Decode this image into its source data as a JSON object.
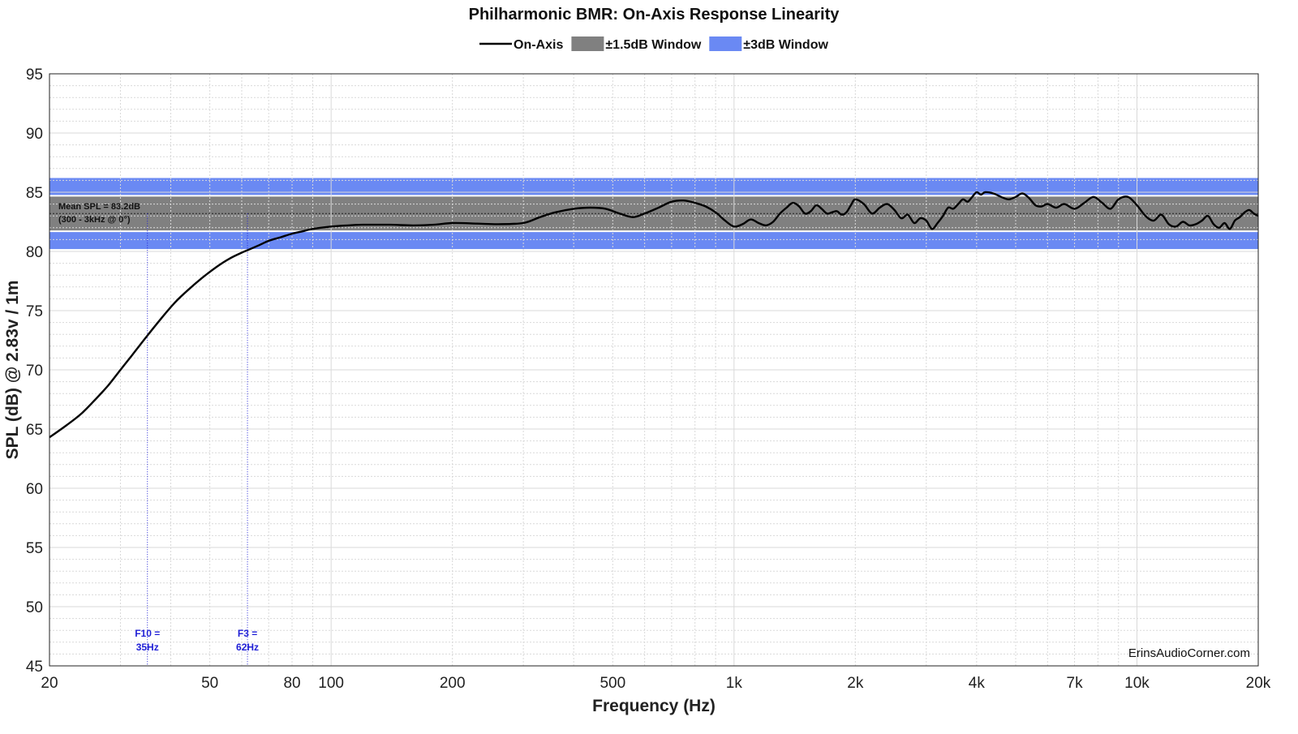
{
  "chart_data": {
    "type": "line",
    "title": "Philharmonic BMR: On-Axis Response Linearity",
    "xlabel": "Frequency (Hz)",
    "ylabel": "SPL (dB) @ 2.83v / 1m",
    "x_scale": "log",
    "xlim": [
      20,
      20000
    ],
    "ylim": [
      45,
      95
    ],
    "grid": true,
    "legend_position": "top-center",
    "x_ticks": [
      {
        "value": 20,
        "label": "20"
      },
      {
        "value": 50,
        "label": "50"
      },
      {
        "value": 80,
        "label": "80"
      },
      {
        "value": 100,
        "label": "100"
      },
      {
        "value": 200,
        "label": "200"
      },
      {
        "value": 500,
        "label": "500"
      },
      {
        "value": 1000,
        "label": "1k"
      },
      {
        "value": 2000,
        "label": "2k"
      },
      {
        "value": 4000,
        "label": "4k"
      },
      {
        "value": 7000,
        "label": "7k"
      },
      {
        "value": 10000,
        "label": "10k"
      },
      {
        "value": 20000,
        "label": "20k"
      }
    ],
    "y_ticks": [
      {
        "value": 45,
        "label": "45"
      },
      {
        "value": 50,
        "label": "50"
      },
      {
        "value": 55,
        "label": "55"
      },
      {
        "value": 60,
        "label": "60"
      },
      {
        "value": 65,
        "label": "65"
      },
      {
        "value": 70,
        "label": "70"
      },
      {
        "value": 75,
        "label": "75"
      },
      {
        "value": 80,
        "label": "80"
      },
      {
        "value": 85,
        "label": "85"
      },
      {
        "value": 90,
        "label": "90"
      },
      {
        "value": 95,
        "label": "95"
      }
    ],
    "legend": [
      {
        "label": "On-Axis",
        "kind": "line",
        "color": "#000000"
      },
      {
        "label": "±1.5dB Window",
        "kind": "band",
        "color": "#808080"
      },
      {
        "label": "±3dB Window",
        "kind": "band",
        "color": "#6a89f3"
      }
    ],
    "bands": [
      {
        "name": "±3dB Window",
        "low": 80.2,
        "high": 86.2,
        "color": "#6a89f3"
      },
      {
        "name": "±1.5dB Window",
        "low": 81.7,
        "high": 84.7,
        "color": "#808080"
      }
    ],
    "mean_line": {
      "value": 83.2
    },
    "annotations": {
      "mean_text_1": "Mean SPL = 83.2dB",
      "mean_text_2": "(300 - 3kHz @ 0°)",
      "f10_line1": "F10 =",
      "f10_line2": "35Hz",
      "f10_freq": 35,
      "f3_line1": "F3 =",
      "f3_line2": "62Hz",
      "f3_freq": 62,
      "watermark": "ErinsAudioCorner.com"
    },
    "colors": {
      "curve": "#000000",
      "marker": "#1f1fd6",
      "grid": "#d9d9d9"
    },
    "series": [
      {
        "name": "On-Axis",
        "x": [
          20,
          22,
          24,
          26,
          28,
          30,
          32,
          35,
          38,
          41,
          44,
          48,
          52,
          56,
          60,
          62,
          66,
          70,
          75,
          80,
          85,
          90,
          100,
          110,
          120,
          140,
          160,
          180,
          200,
          230,
          260,
          300,
          330,
          360,
          400,
          440,
          480,
          520,
          560,
          600,
          650,
          700,
          750,
          800,
          850,
          900,
          950,
          1000,
          1050,
          1100,
          1150,
          1200,
          1250,
          1300,
          1350,
          1400,
          1450,
          1500,
          1550,
          1600,
          1650,
          1700,
          1750,
          1800,
          1850,
          1900,
          1950,
          2000,
          2100,
          2200,
          2300,
          2400,
          2500,
          2600,
          2700,
          2800,
          2900,
          3000,
          3100,
          3200,
          3300,
          3400,
          3500,
          3600,
          3700,
          3800,
          3900,
          4000,
          4100,
          4200,
          4400,
          4600,
          4800,
          5000,
          5200,
          5400,
          5600,
          5800,
          6000,
          6300,
          6600,
          7000,
          7400,
          7800,
          8200,
          8600,
          9000,
          9500,
          10000,
          10500,
          11000,
          11500,
          12000,
          12500,
          13000,
          13500,
          14000,
          14500,
          15000,
          15500,
          16000,
          16500,
          17000,
          17500,
          18000,
          18500,
          19000,
          19500,
          20000
        ],
        "y": [
          64.3,
          65.3,
          66.3,
          67.5,
          68.7,
          70.0,
          71.2,
          72.9,
          74.4,
          75.7,
          76.7,
          77.8,
          78.7,
          79.4,
          79.9,
          80.1,
          80.5,
          80.9,
          81.2,
          81.5,
          81.7,
          81.9,
          82.1,
          82.2,
          82.25,
          82.25,
          82.2,
          82.25,
          82.4,
          82.35,
          82.3,
          82.4,
          82.9,
          83.3,
          83.6,
          83.7,
          83.6,
          83.2,
          82.9,
          83.2,
          83.7,
          84.2,
          84.3,
          84.1,
          83.8,
          83.3,
          82.6,
          82.1,
          82.3,
          82.7,
          82.4,
          82.2,
          82.5,
          83.2,
          83.7,
          84.1,
          83.8,
          83.2,
          83.4,
          83.9,
          83.6,
          83.2,
          83.3,
          83.4,
          83.1,
          83.3,
          83.9,
          84.4,
          84.0,
          83.2,
          83.7,
          84.0,
          83.5,
          82.8,
          83.1,
          82.4,
          82.8,
          82.6,
          81.9,
          82.4,
          83.0,
          83.7,
          83.6,
          84.0,
          84.4,
          84.2,
          84.6,
          85.0,
          84.8,
          85.0,
          84.9,
          84.6,
          84.4,
          84.6,
          84.9,
          84.5,
          83.9,
          83.8,
          84.0,
          83.7,
          84.0,
          83.6,
          84.1,
          84.6,
          84.1,
          83.6,
          84.4,
          84.6,
          83.9,
          83.0,
          82.6,
          83.1,
          82.3,
          82.1,
          82.5,
          82.2,
          82.3,
          82.6,
          83.0,
          82.3,
          82.0,
          82.4,
          81.9,
          82.6,
          82.9,
          83.3,
          83.5,
          83.2,
          83.0
        ]
      }
    ]
  }
}
